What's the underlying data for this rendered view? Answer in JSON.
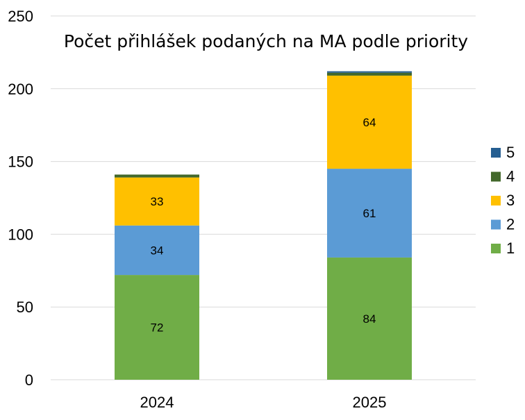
{
  "chart_data": {
    "type": "bar",
    "stacked": true,
    "title": "Počet přihlášek podaných na MA podle priority",
    "xlabel": "",
    "ylabel": "",
    "categories": [
      "2024",
      "2025"
    ],
    "ylim": [
      0,
      250
    ],
    "yticks": [
      0,
      50,
      100,
      150,
      200,
      250
    ],
    "grid": true,
    "legend_position": "right",
    "series": [
      {
        "name": "1",
        "color": "#70ad47",
        "values": [
          72,
          84
        ],
        "labels": [
          "72",
          "84"
        ]
      },
      {
        "name": "2",
        "color": "#5b9bd5",
        "values": [
          34,
          61
        ],
        "labels": [
          "34",
          "61"
        ]
      },
      {
        "name": "3",
        "color": "#ffc000",
        "values": [
          33,
          64
        ],
        "labels": [
          "33",
          "64"
        ]
      },
      {
        "name": "4",
        "color": "#43682b",
        "values": [
          2,
          2
        ],
        "labels": [
          "",
          ""
        ]
      },
      {
        "name": "5",
        "color": "#255e91",
        "values": [
          0,
          1
        ],
        "labels": [
          "",
          ""
        ]
      }
    ]
  }
}
